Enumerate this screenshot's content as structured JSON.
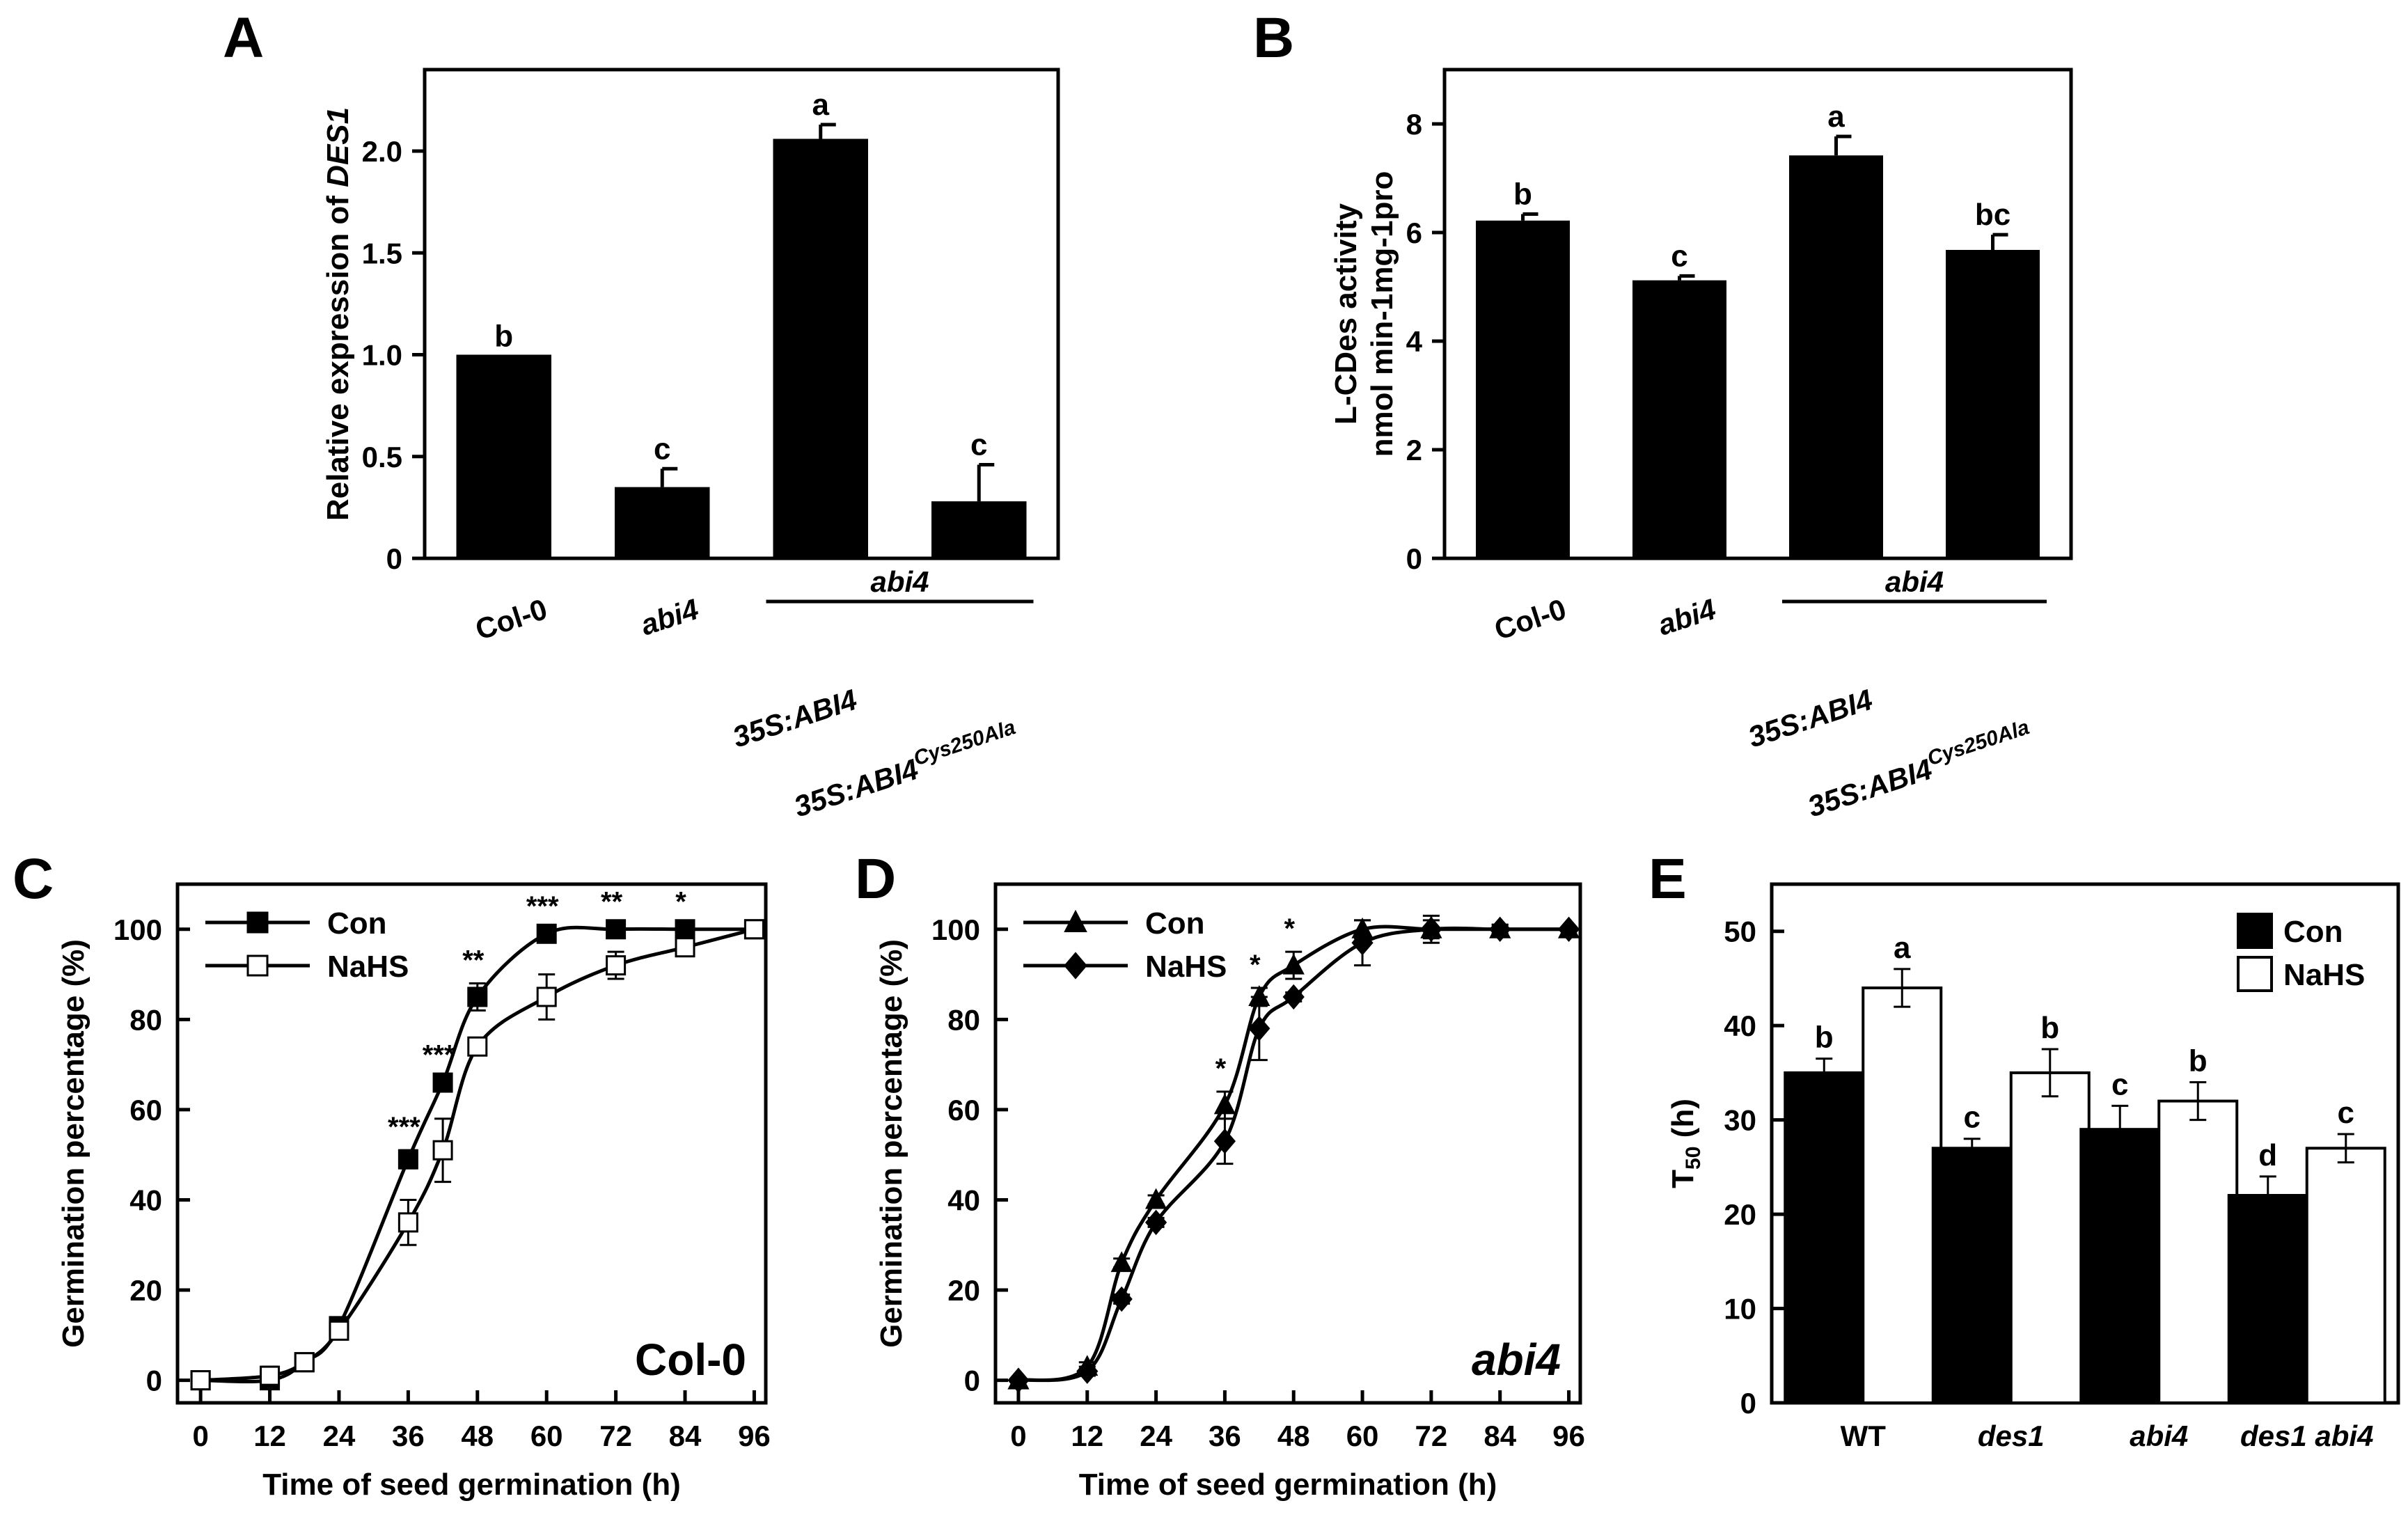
{
  "chart_data": [
    {
      "panel": "A",
      "type": "bar",
      "ylabel_prefix": "Relative expression of ",
      "ylabel_gene": "DES1",
      "ylim": [
        0,
        2.4
      ],
      "yticks": [
        "0",
        "0.5",
        "1.0",
        "1.5",
        "2.0"
      ],
      "ytick_values": [
        0,
        0.5,
        1.0,
        1.5,
        2.0
      ],
      "categories": [
        "Col-0",
        "abi4",
        "35S:ABI4",
        "35S:ABI4Cys250Ala"
      ],
      "cat_main": [
        "Col-0",
        "abi4",
        "35S:ABI4",
        "35S:ABI4"
      ],
      "cat_sup": [
        "",
        "",
        "",
        "Cys250Ala"
      ],
      "cat_italic": [
        false,
        true,
        true,
        true
      ],
      "values": [
        1.0,
        0.35,
        2.06,
        0.28
      ],
      "errors": [
        0,
        0.09,
        0.07,
        0.18
      ],
      "letters": [
        "b",
        "c",
        "a",
        "c"
      ],
      "group_label": "abi4"
    },
    {
      "panel": "B",
      "type": "bar",
      "ylabel_line1": "L-CDes activity",
      "ylabel_line2": "nmol min-1mg-1pro",
      "ylim": [
        0,
        9
      ],
      "yticks": [
        "0",
        "2",
        "4",
        "6",
        "8"
      ],
      "ytick_values": [
        0,
        2,
        4,
        6,
        8
      ],
      "categories": [
        "Col-0",
        "abi4",
        "35S:ABI4",
        "35S:ABI4Cys250Ala"
      ],
      "cat_main": [
        "Col-0",
        "abi4",
        "35S:ABI4",
        "35S:ABI4"
      ],
      "cat_sup": [
        "",
        "",
        "",
        "Cys250Ala"
      ],
      "cat_italic": [
        false,
        true,
        true,
        true
      ],
      "values": [
        6.22,
        5.12,
        7.42,
        5.68
      ],
      "errors": [
        0.12,
        0.08,
        0.35,
        0.28
      ],
      "letters": [
        "b",
        "c",
        "a",
        "bc"
      ],
      "group_label": "abi4"
    },
    {
      "panel": "C",
      "type": "line",
      "corner_label": "Col-0",
      "xlabel": "Time of seed germination (h)",
      "ylabel": "Germination percentage (%)",
      "xlim": [
        -4,
        98
      ],
      "ylim": [
        -5,
        110
      ],
      "xticks": [
        "0",
        "12",
        "24",
        "36",
        "48",
        "60",
        "72",
        "84",
        "96"
      ],
      "xtick_values": [
        0,
        12,
        24,
        36,
        48,
        60,
        72,
        84,
        96
      ],
      "yticks": [
        "0",
        "20",
        "40",
        "60",
        "80",
        "100"
      ],
      "ytick_values": [
        0,
        20,
        40,
        60,
        80,
        100
      ],
      "legend": [
        "Con",
        "NaHS"
      ],
      "series": [
        {
          "name": "Con",
          "marker": "square-filled",
          "x": [
            0,
            12,
            18,
            24,
            36,
            42,
            48,
            60,
            72,
            84,
            96
          ],
          "y": [
            0,
            0,
            4,
            12,
            49,
            66,
            85,
            99,
            100,
            100,
            100
          ],
          "err": [
            0,
            1,
            1,
            1,
            2,
            1,
            3,
            1,
            1,
            1,
            0
          ]
        },
        {
          "name": "NaHS",
          "marker": "square-open",
          "x": [
            0,
            12,
            18,
            24,
            36,
            42,
            48,
            60,
            72,
            84,
            96
          ],
          "y": [
            0,
            1,
            4,
            11,
            35,
            51,
            74,
            85,
            92,
            96,
            100
          ],
          "err": [
            0,
            2,
            1,
            1,
            5,
            7,
            1,
            5,
            3,
            1,
            0
          ]
        }
      ],
      "significance": [
        {
          "x": 36,
          "text": "***"
        },
        {
          "x": 42,
          "text": "***"
        },
        {
          "x": 48,
          "text": "**"
        },
        {
          "x": 60,
          "text": "***"
        },
        {
          "x": 72,
          "text": "**"
        },
        {
          "x": 84,
          "text": "*"
        }
      ]
    },
    {
      "panel": "D",
      "type": "line",
      "corner_label": "abi4",
      "xlabel": "Time of seed germination (h)",
      "ylabel": "Germination percentage (%)",
      "xlim": [
        -4,
        98
      ],
      "ylim": [
        -5,
        110
      ],
      "xticks": [
        "0",
        "12",
        "24",
        "36",
        "48",
        "60",
        "72",
        "84",
        "96"
      ],
      "xtick_values": [
        0,
        12,
        24,
        36,
        48,
        60,
        72,
        84,
        96
      ],
      "yticks": [
        "0",
        "20",
        "40",
        "60",
        "80",
        "100"
      ],
      "ytick_values": [
        0,
        20,
        40,
        60,
        80,
        100
      ],
      "legend": [
        "Con",
        "NaHS"
      ],
      "series": [
        {
          "name": "Con",
          "marker": "triangle",
          "x": [
            0,
            12,
            18,
            24,
            36,
            42,
            48,
            60,
            72,
            84,
            96
          ],
          "y": [
            0,
            3,
            26,
            40,
            61,
            85,
            92,
            100,
            100,
            100,
            100
          ],
          "err": [
            0,
            1,
            1,
            1,
            3,
            2,
            3,
            2,
            2,
            1,
            0
          ]
        },
        {
          "name": "NaHS",
          "marker": "diamond",
          "x": [
            0,
            12,
            18,
            24,
            36,
            42,
            48,
            60,
            72,
            84,
            96
          ],
          "y": [
            0,
            2,
            18,
            35,
            53,
            78,
            85,
            97,
            100,
            100,
            100
          ],
          "err": [
            0,
            1,
            1,
            1,
            5,
            7,
            1,
            5,
            3,
            1,
            0
          ]
        }
      ],
      "significance": [
        {
          "x": 36,
          "text": "*"
        },
        {
          "x": 42,
          "text": "*"
        },
        {
          "x": 48,
          "text": "*"
        }
      ]
    },
    {
      "panel": "E",
      "type": "bar",
      "ylabel_main": "T",
      "ylabel_sub": "50",
      "ylabel_unit": " (h)",
      "ylim": [
        0,
        55
      ],
      "yticks": [
        "0",
        "10",
        "20",
        "30",
        "40",
        "50"
      ],
      "ytick_values": [
        0,
        10,
        20,
        30,
        40,
        50
      ],
      "categories": [
        "WT",
        "des1",
        "abi4",
        "des1 abi4"
      ],
      "cat_italic": [
        false,
        true,
        true,
        true
      ],
      "legend": [
        "Con",
        "NaHS"
      ],
      "series": [
        {
          "name": "Con",
          "fill": "#000000",
          "values": [
            35,
            27,
            29,
            22
          ],
          "errors": [
            1.5,
            1,
            2.5,
            2
          ],
          "letters": [
            "b",
            "c",
            "c",
            "d"
          ]
        },
        {
          "name": "NaHS",
          "fill": "#ffffff",
          "values": [
            44,
            35,
            32,
            27
          ],
          "errors": [
            2,
            2.5,
            2,
            1.5
          ],
          "letters": [
            "a",
            "b",
            "b",
            "c"
          ]
        }
      ]
    }
  ]
}
